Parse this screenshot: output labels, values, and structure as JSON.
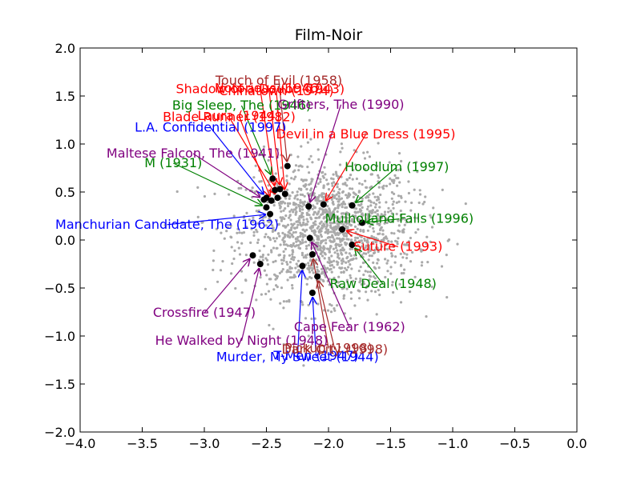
{
  "chart_data": {
    "type": "scatter",
    "title": "Film-Noir",
    "xlabel": "",
    "ylabel": "",
    "xlim": [
      -4.0,
      0.0
    ],
    "ylim": [
      -2.0,
      2.0
    ],
    "xticks": [
      -4.0,
      -3.5,
      -3.0,
      -2.5,
      -2.0,
      -1.5,
      -1.0,
      -0.5,
      0.0
    ],
    "yticks": [
      -2.0,
      -1.5,
      -1.0,
      -0.5,
      0.0,
      0.5,
      1.0,
      1.5,
      2.0
    ],
    "xtick_labels": [
      "−4.0",
      "−3.5",
      "−3.0",
      "−2.5",
      "−2.0",
      "−1.5",
      "−1.0",
      "−0.5",
      "0.0"
    ],
    "ytick_labels": [
      "−2.0",
      "−1.5",
      "−1.0",
      "−0.5",
      "0.0",
      "0.5",
      "1.0",
      "1.5",
      "2.0"
    ],
    "grid": false,
    "background_cloud": {
      "color": "#aaaaaa",
      "approx_center": [
        -2.0,
        0.1
      ],
      "approx_spread": [
        0.35,
        0.35
      ],
      "approx_count": 1500
    },
    "highlight_color": "#000000",
    "films": [
      {
        "label": "Touch of Evil (1958)",
        "color": "#a52a2a",
        "x": -2.33,
        "y": 0.77,
        "label_x": -2.4,
        "label_y": 1.66
      },
      {
        "label": "Notorious (1946)",
        "color": "#ff0000",
        "x": -2.39,
        "y": 0.53,
        "label_x": -2.48,
        "label_y": 1.58
      },
      {
        "label": "Shadow of a Doubt (1943)",
        "color": "#ff0000",
        "x": -2.43,
        "y": 0.52,
        "label_x": -2.55,
        "label_y": 1.57
      },
      {
        "label": "Chinatown (1974)",
        "color": "#ff0000",
        "x": -2.35,
        "y": 0.48,
        "label_x": -2.42,
        "label_y": 1.55
      },
      {
        "label": "Big Sleep, The (1946)",
        "color": "#008000",
        "x": -2.45,
        "y": 0.64,
        "label_x": -2.7,
        "label_y": 1.4
      },
      {
        "label": "Blade Runner (1982)",
        "color": "#ff0000",
        "x": -2.41,
        "y": 0.44,
        "label_x": -2.8,
        "label_y": 1.28
      },
      {
        "label": "Laura (1944)",
        "color": "#ff0000",
        "x": -2.46,
        "y": 0.41,
        "label_x": -2.72,
        "label_y": 1.29
      },
      {
        "label": "L.A. Confidential (1997)",
        "color": "#0000ff",
        "x": -2.5,
        "y": 0.44,
        "label_x": -2.95,
        "label_y": 1.17
      },
      {
        "label": "Maltese Falcon, The (1941)",
        "color": "#800080",
        "x": -2.52,
        "y": 0.42,
        "label_x": -3.09,
        "label_y": 0.9
      },
      {
        "label": "M (1931)",
        "color": "#008000",
        "x": -2.5,
        "y": 0.34,
        "label_x": -3.25,
        "label_y": 0.8
      },
      {
        "label": "Manchurian Candidate, The (1962)",
        "color": "#0000ff",
        "x": -2.47,
        "y": 0.27,
        "label_x": -3.3,
        "label_y": 0.16
      },
      {
        "label": "Grifters, The (1990)",
        "color": "#800080",
        "x": -2.16,
        "y": 0.35,
        "label_x": -1.9,
        "label_y": 1.41
      },
      {
        "label": "Devil in a Blue Dress (1995)",
        "color": "#ff0000",
        "x": -2.04,
        "y": 0.37,
        "label_x": -1.7,
        "label_y": 1.1
      },
      {
        "label": "Hoodlum (1997)",
        "color": "#008000",
        "x": -1.81,
        "y": 0.36,
        "label_x": -1.45,
        "label_y": 0.76
      },
      {
        "label": "Mulholland Falls (1996)",
        "color": "#008000",
        "x": -1.73,
        "y": 0.18,
        "label_x": -1.43,
        "label_y": 0.22
      },
      {
        "label": "Suture (1993)",
        "color": "#ff0000",
        "x": -1.89,
        "y": 0.11,
        "label_x": -1.44,
        "label_y": -0.07
      },
      {
        "label": "Raw Deal (1948)",
        "color": "#008000",
        "x": -1.81,
        "y": -0.05,
        "label_x": -1.56,
        "label_y": -0.46
      },
      {
        "label": "Cape Fear (1962)",
        "color": "#800080",
        "x": -2.15,
        "y": 0.02,
        "label_x": -1.83,
        "label_y": -0.91
      },
      {
        "label": "Crossfire (1947)",
        "color": "#800080",
        "x": -2.61,
        "y": -0.16,
        "label_x": -3.0,
        "label_y": -0.76
      },
      {
        "label": "He Walked by Night (1948)",
        "color": "#800080",
        "x": -2.55,
        "y": -0.25,
        "label_x": -2.7,
        "label_y": -1.05
      },
      {
        "label": "Murder, My Sweet (1944)",
        "color": "#0000ff",
        "x": -2.21,
        "y": -0.27,
        "label_x": -2.25,
        "label_y": -1.22
      },
      {
        "label": "T-Men (1947)",
        "color": "#0000ff",
        "x": -2.13,
        "y": -0.55,
        "label_x": -2.1,
        "label_y": -1.21
      },
      {
        "label": "Dark City (1998)",
        "color": "#a52a2a",
        "x": -2.09,
        "y": -0.38,
        "label_x": -1.95,
        "label_y": -1.14
      },
      {
        "label": "Pickup (1998)",
        "color": "#a52a2a",
        "x": -2.13,
        "y": -0.15,
        "label_x": -2.0,
        "label_y": -1.13
      }
    ]
  }
}
